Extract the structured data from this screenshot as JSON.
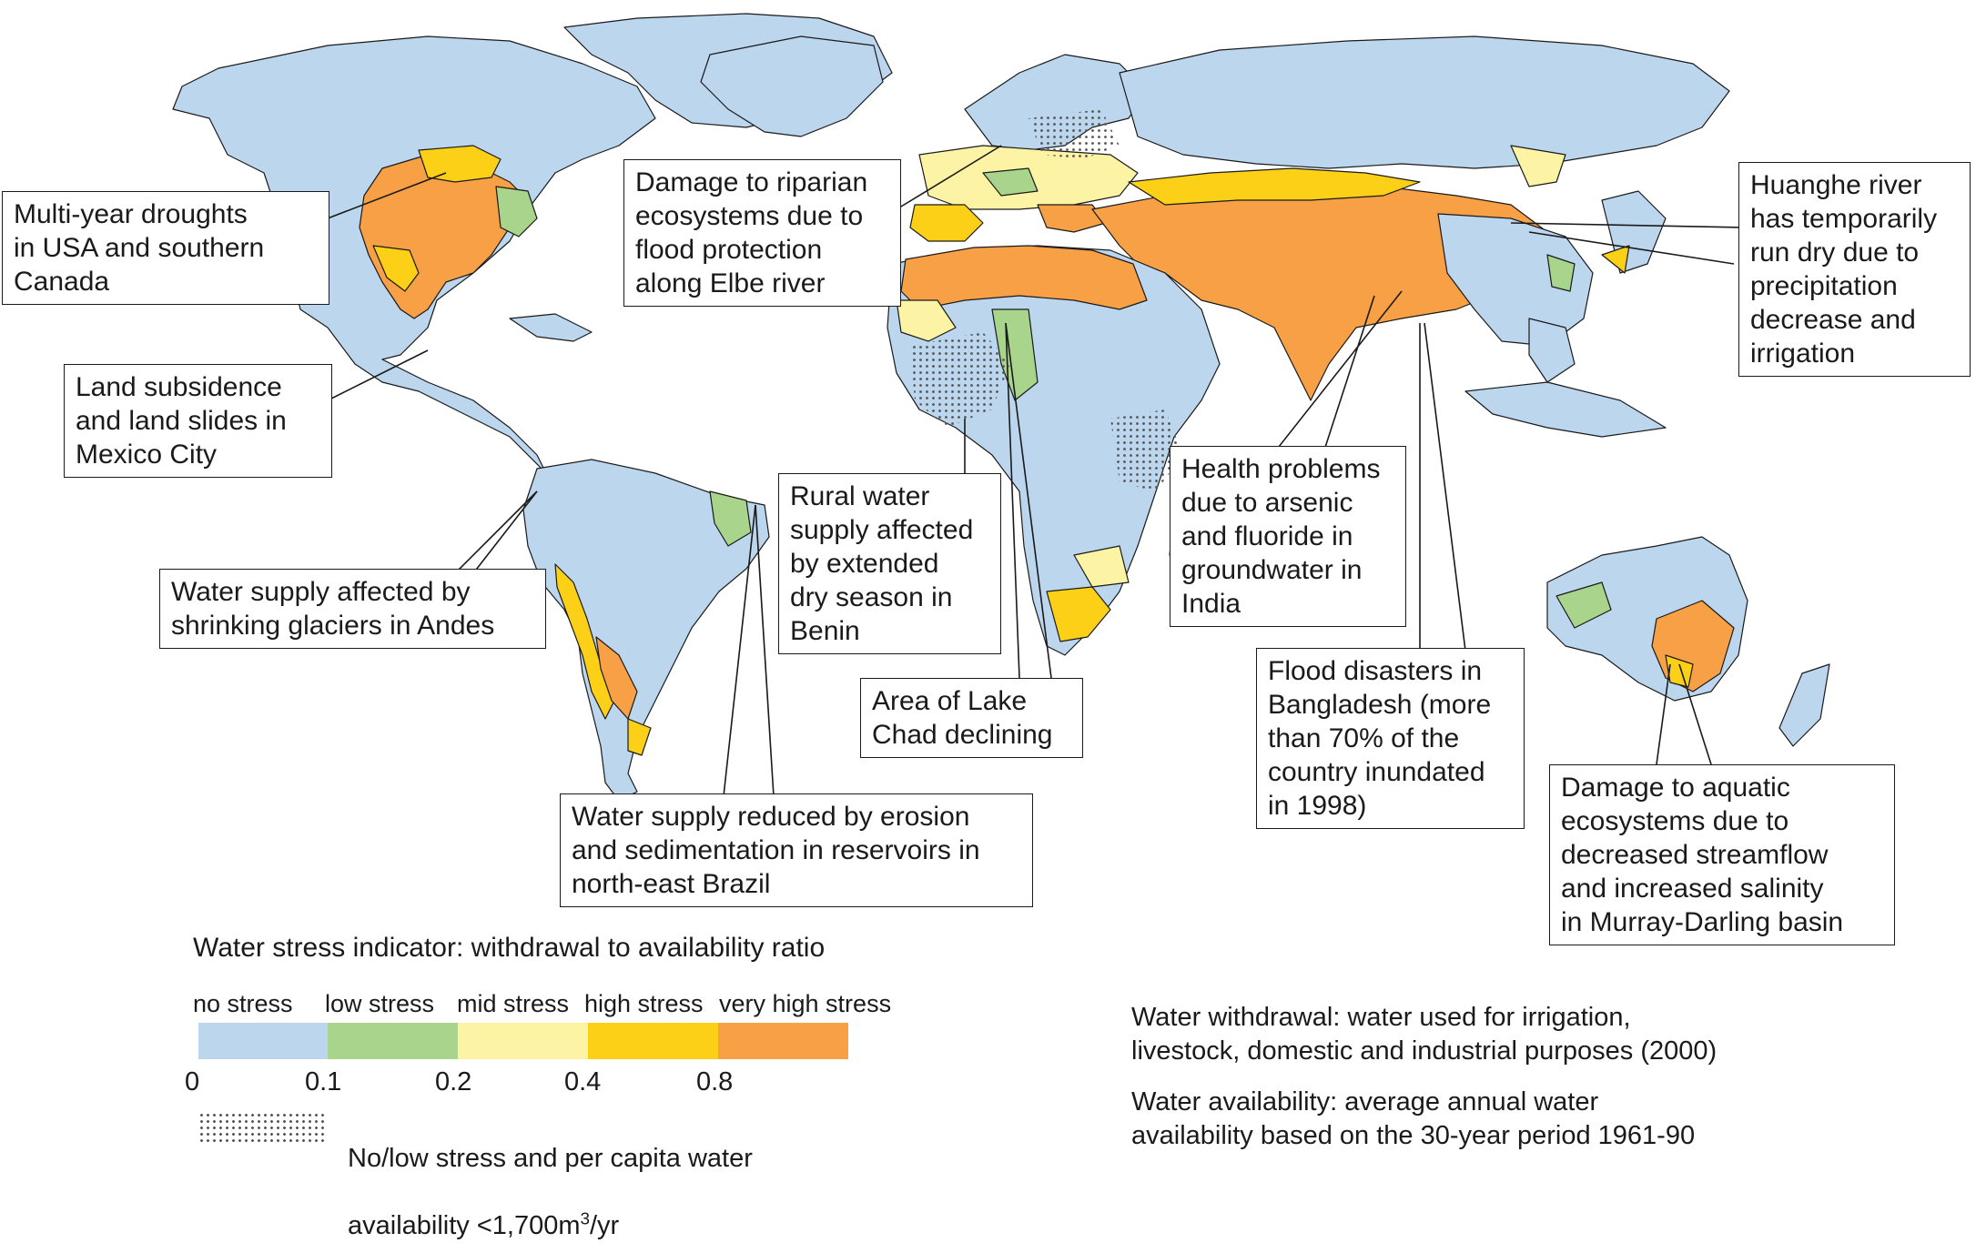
{
  "colors": {
    "ocean": "#ffffff",
    "no_stress": "#bcd6ee",
    "low_stress": "#a9d48b",
    "mid_stress": "#fdf3a5",
    "high_stress": "#fcd016",
    "very_high_stress": "#f7a045",
    "coastline": "#1a1a1a",
    "stipple": "#555555"
  },
  "callouts": {
    "usa_droughts": "Multi-year droughts\nin USA and southern\nCanada",
    "mexico_city": "Land subsidence\nand land slides in\nMexico City",
    "andes": "Water supply affected by\nshrinking glaciers in Andes",
    "brazil": "Water supply reduced by erosion\nand sedimentation in reservoirs in\nnorth-east Brazil",
    "elbe": "Damage to riparian\necosystems due to\nflood protection\nalong Elbe river",
    "benin": "Rural water\nsupply affected\nby extended\ndry season in\nBenin",
    "lake_chad": "Area of Lake\nChad declining",
    "india": "Health problems\ndue to arsenic\nand fluoride in\ngroundwater in\nIndia",
    "bangladesh": "Flood disasters in\nBangladesh (more\nthan 70% of the\ncountry inundated\nin 1998)",
    "huanghe": "Huanghe river\nhas temporarily\nrun dry due to\nprecipitation\ndecrease and\nirrigation",
    "murray_darling": "Damage to aquatic\necosystems due to\ndecreased streamflow\nand increased salinity\nin Murray-Darling basin"
  },
  "legend": {
    "title": "Water stress indicator: withdrawal to availability ratio",
    "categories": [
      "no stress",
      "low stress",
      "mid stress",
      "high stress",
      "very high stress"
    ],
    "ticks": [
      "0",
      "0.1",
      "0.2",
      "0.4",
      "0.8"
    ],
    "stipple_label_line1": "No/low stress and per capita water",
    "stipple_label_line2_prefix": "availability <1,700m",
    "stipple_label_sup": "3",
    "stipple_label_suffix": "/yr"
  },
  "notes": {
    "withdrawal": "Water withdrawal: water used for irrigation,\nlivestock, domestic and industrial purposes (2000)",
    "availability": "Water availability: average annual water\navailability based on the 30-year period 1961-90"
  }
}
